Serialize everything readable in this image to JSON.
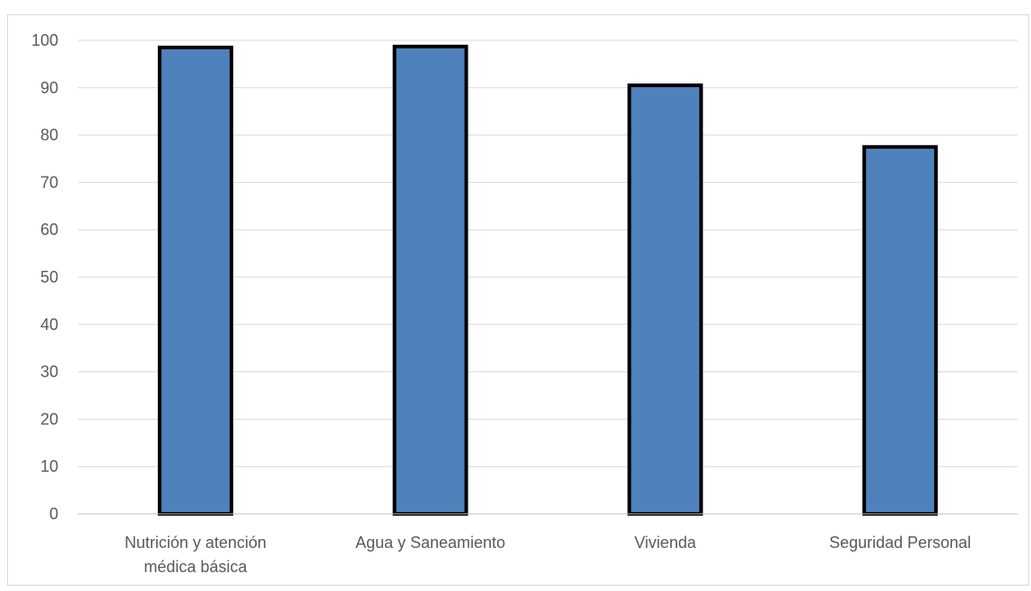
{
  "chart_data": {
    "type": "bar",
    "title": "",
    "xlabel": "",
    "ylabel": "",
    "categories": [
      [
        "Nutrición y atención",
        "médica básica"
      ],
      [
        "Agua y Saneamiento"
      ],
      [
        "Vivienda"
      ],
      [
        "Seguridad Personal"
      ]
    ],
    "values": [
      98.5,
      98.7,
      90.5,
      77.5
    ],
    "ylim": [
      0,
      100
    ],
    "yticks": [
      "0",
      "10",
      "20",
      "30",
      "40",
      "50",
      "60",
      "70",
      "80",
      "90",
      "100"
    ],
    "grid": true,
    "legend": "none",
    "colors": {
      "bar_fill": "#4f81bd",
      "bar_stroke": "#000000",
      "grid": "#d9d9d9",
      "axis": "#bfbfbf",
      "text": "#595959"
    }
  }
}
